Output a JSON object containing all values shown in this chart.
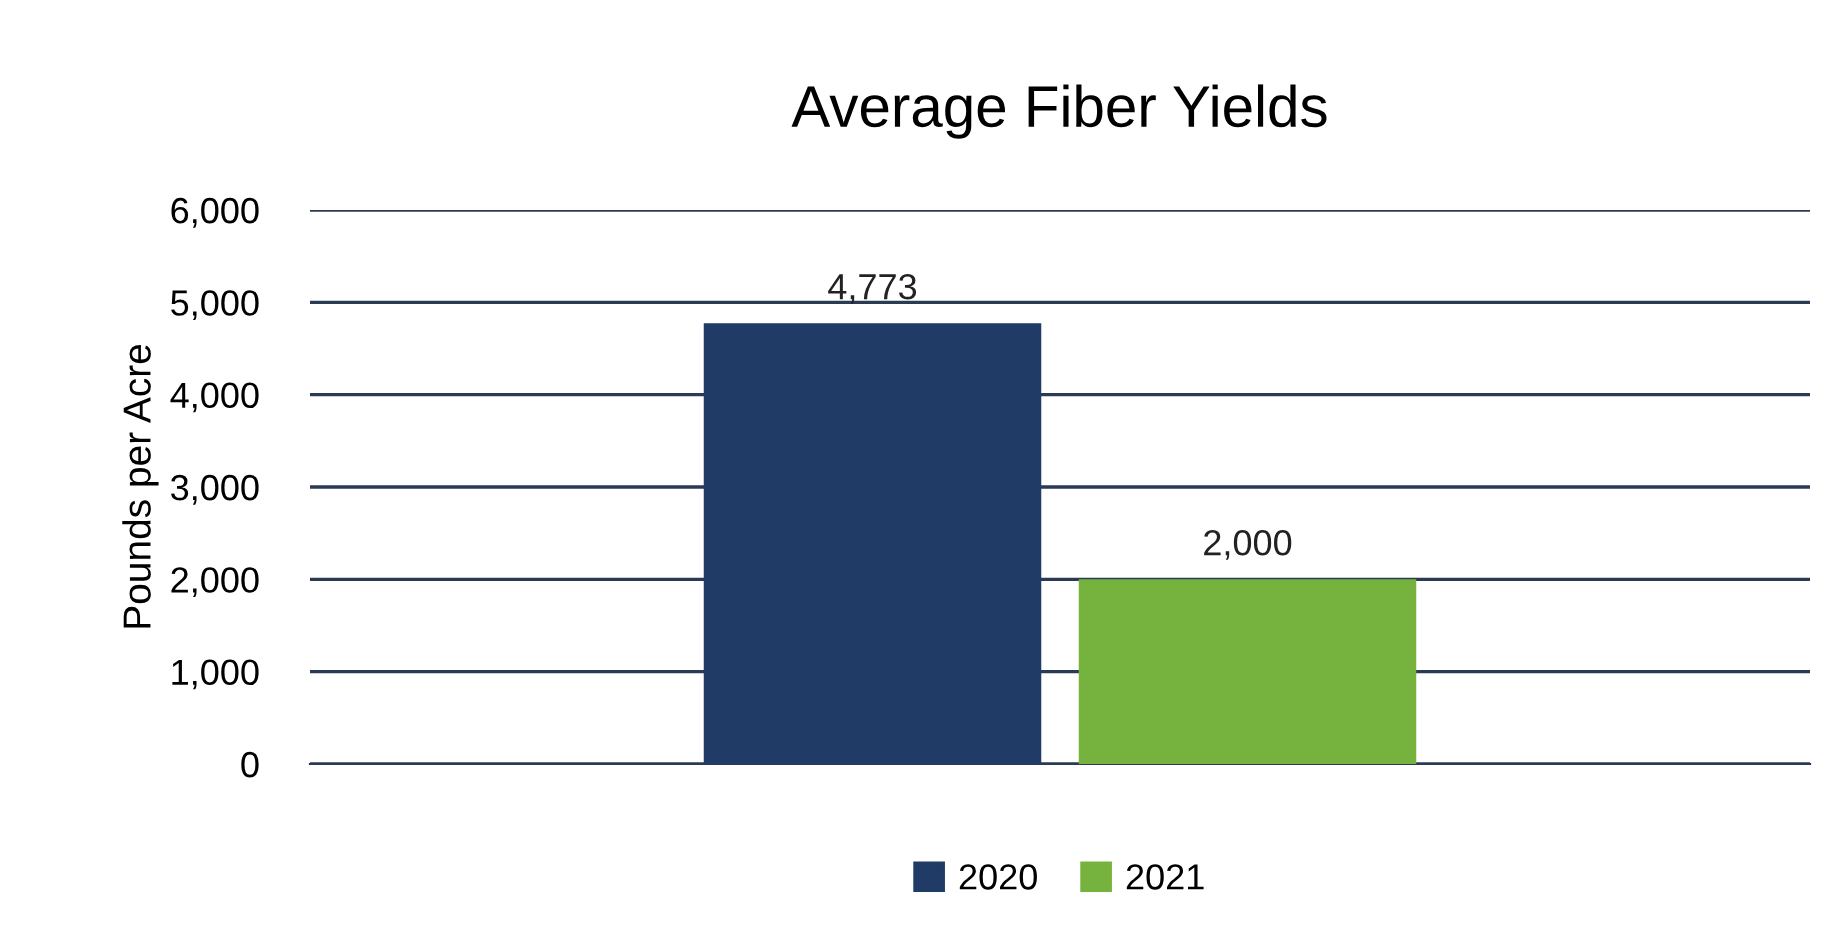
{
  "chart_data": {
    "type": "bar",
    "title": "Average Fiber Yields",
    "ylabel": "Pounds per Acre",
    "categories": [
      null
    ],
    "series": [
      {
        "name": "2020",
        "color": "#1f3b66",
        "values": [
          4773
        ],
        "value_labels": [
          "4,773"
        ]
      },
      {
        "name": "2021",
        "color": "#76b33e",
        "values": [
          2000
        ],
        "value_labels": [
          "2,000"
        ]
      }
    ],
    "ylim": [
      0,
      6000
    ],
    "yticks": [
      {
        "value": 0,
        "label": "0"
      },
      {
        "value": 1000,
        "label": "1,000"
      },
      {
        "value": 2000,
        "label": "2,000"
      },
      {
        "value": 3000,
        "label": "3,000"
      },
      {
        "value": 4000,
        "label": "4,000"
      },
      {
        "value": 5000,
        "label": "5,000"
      },
      {
        "value": 6000,
        "label": "6,000"
      }
    ],
    "grid": "y",
    "legend": "bottom"
  }
}
